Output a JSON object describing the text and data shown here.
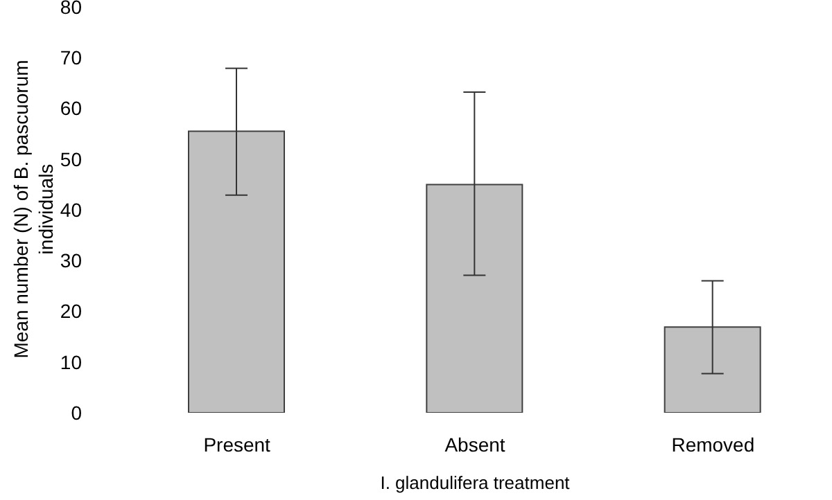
{
  "chart_data": {
    "type": "bar",
    "xlabel": "I. glandulifera treatment",
    "ylabel": "Mean number (N) of B. pascuorum individuals",
    "categories": [
      "Present",
      "Absent",
      "Removed"
    ],
    "values": [
      55.5,
      45.0,
      16.9
    ],
    "errors": [
      [
        42.9,
        67.9
      ],
      [
        27.1,
        63.2
      ],
      [
        7.7,
        26.0
      ]
    ],
    "color": "#c0c0c0",
    "ylim": [
      0,
      80
    ],
    "yticks": [
      0,
      10,
      20,
      30,
      40,
      50,
      60,
      70,
      80
    ],
    "grid": false,
    "legend": false
  }
}
